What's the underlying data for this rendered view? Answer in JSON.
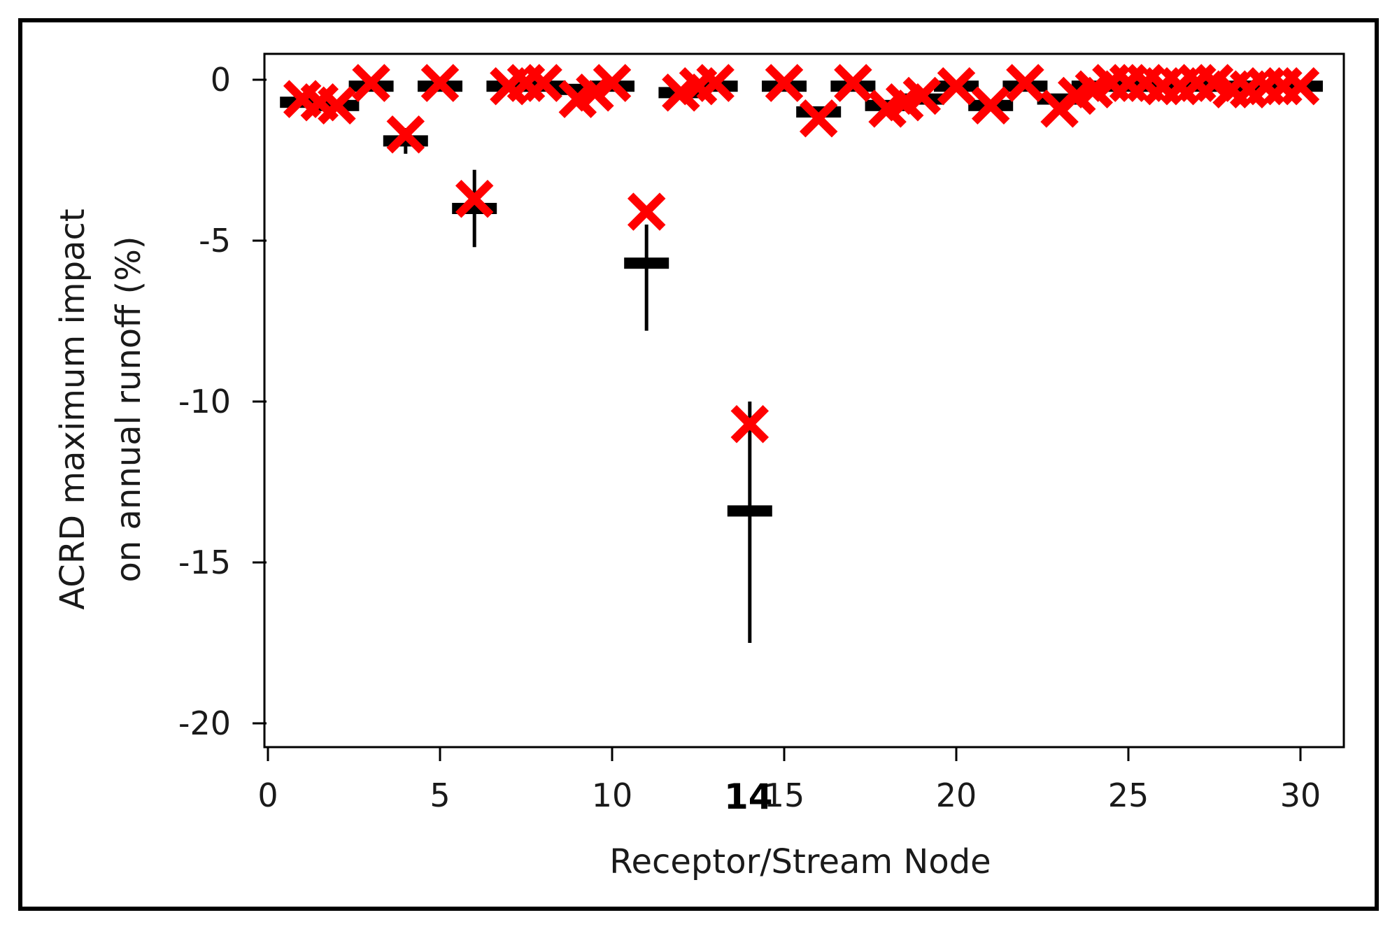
{
  "chart_data": {
    "type": "scatter",
    "title": "",
    "xlabel": "Receptor/Stream Node",
    "ylabel_lines": [
      "ACRD maximum impact",
      "on annual runoff (%)"
    ],
    "xlim": [
      0,
      31
    ],
    "ylim": [
      -21,
      0.8
    ],
    "x_ticks": [
      0,
      5,
      10,
      15,
      20,
      25,
      30
    ],
    "y_ticks": [
      0,
      -5,
      -10,
      -15,
      -20
    ],
    "x_tick_labels": [
      "0",
      "5",
      "10",
      "15",
      "20",
      "25",
      "30"
    ],
    "y_tick_labels": [
      "0",
      "-5",
      "-10",
      "-15",
      "-20"
    ],
    "highlight_x_label": "14",
    "highlight_x": 14,
    "grid": false,
    "legend": "none",
    "colors": {
      "mean_marker": "#000000",
      "cross_marker": "#ff0000"
    },
    "series": [
      {
        "marker": "horizontal-bar-with-error",
        "x": [
          1,
          2,
          3,
          4,
          5,
          6,
          7,
          8,
          9,
          10,
          11,
          12,
          13,
          14,
          15,
          16,
          17,
          18,
          19,
          20,
          21,
          22,
          23,
          24,
          25,
          26,
          27,
          28,
          29,
          30
        ],
        "y": [
          -0.7,
          -0.8,
          -0.2,
          -1.9,
          -0.2,
          -4.0,
          -0.2,
          -0.2,
          -0.3,
          -0.2,
          -5.7,
          -0.4,
          -0.2,
          -13.4,
          -0.2,
          -1.0,
          -0.2,
          -0.8,
          -0.6,
          -0.2,
          -0.8,
          -0.2,
          -0.6,
          -0.2,
          -0.2,
          -0.2,
          -0.2,
          -0.2,
          -0.2,
          -0.2
        ],
        "err_low": [
          null,
          null,
          null,
          -2.3,
          null,
          -5.2,
          null,
          null,
          null,
          null,
          -7.8,
          null,
          null,
          -17.5,
          null,
          null,
          null,
          null,
          null,
          null,
          null,
          null,
          null,
          null,
          null,
          null,
          null,
          null,
          null,
          null
        ],
        "err_high": [
          null,
          null,
          null,
          -1.5,
          null,
          -2.8,
          null,
          null,
          null,
          null,
          -4.5,
          null,
          null,
          -10.0,
          null,
          null,
          null,
          null,
          null,
          null,
          null,
          null,
          null,
          null,
          null,
          null,
          null,
          null,
          null,
          null
        ]
      },
      {
        "marker": "x",
        "x": [
          1,
          1.5,
          2,
          3,
          4,
          5,
          6,
          7,
          7.5,
          8,
          9,
          9.5,
          10,
          12,
          12.5,
          13,
          15,
          16,
          17,
          18,
          18.5,
          19,
          20,
          21,
          22,
          23,
          23.5,
          24,
          24.5,
          25,
          25.5,
          26,
          26.5,
          27,
          27.5,
          28,
          28.5,
          29,
          29.5,
          30
        ],
        "y": [
          -0.6,
          -0.7,
          -0.8,
          -0.1,
          -1.7,
          -0.1,
          -3.7,
          -0.2,
          -0.1,
          -0.1,
          -0.6,
          -0.4,
          -0.1,
          -0.4,
          -0.2,
          -0.1,
          -0.1,
          -1.2,
          -0.1,
          -0.9,
          -0.7,
          -0.5,
          -0.2,
          -0.8,
          -0.1,
          -0.9,
          -0.5,
          -0.3,
          -0.1,
          -0.1,
          -0.1,
          -0.2,
          -0.2,
          -0.1,
          -0.1,
          -0.3,
          -0.3,
          -0.2,
          -0.2,
          -0.2
        ]
      },
      {
        "marker": "x",
        "x": [
          11,
          14
        ],
        "y": [
          -4.1,
          -10.7
        ]
      }
    ]
  }
}
